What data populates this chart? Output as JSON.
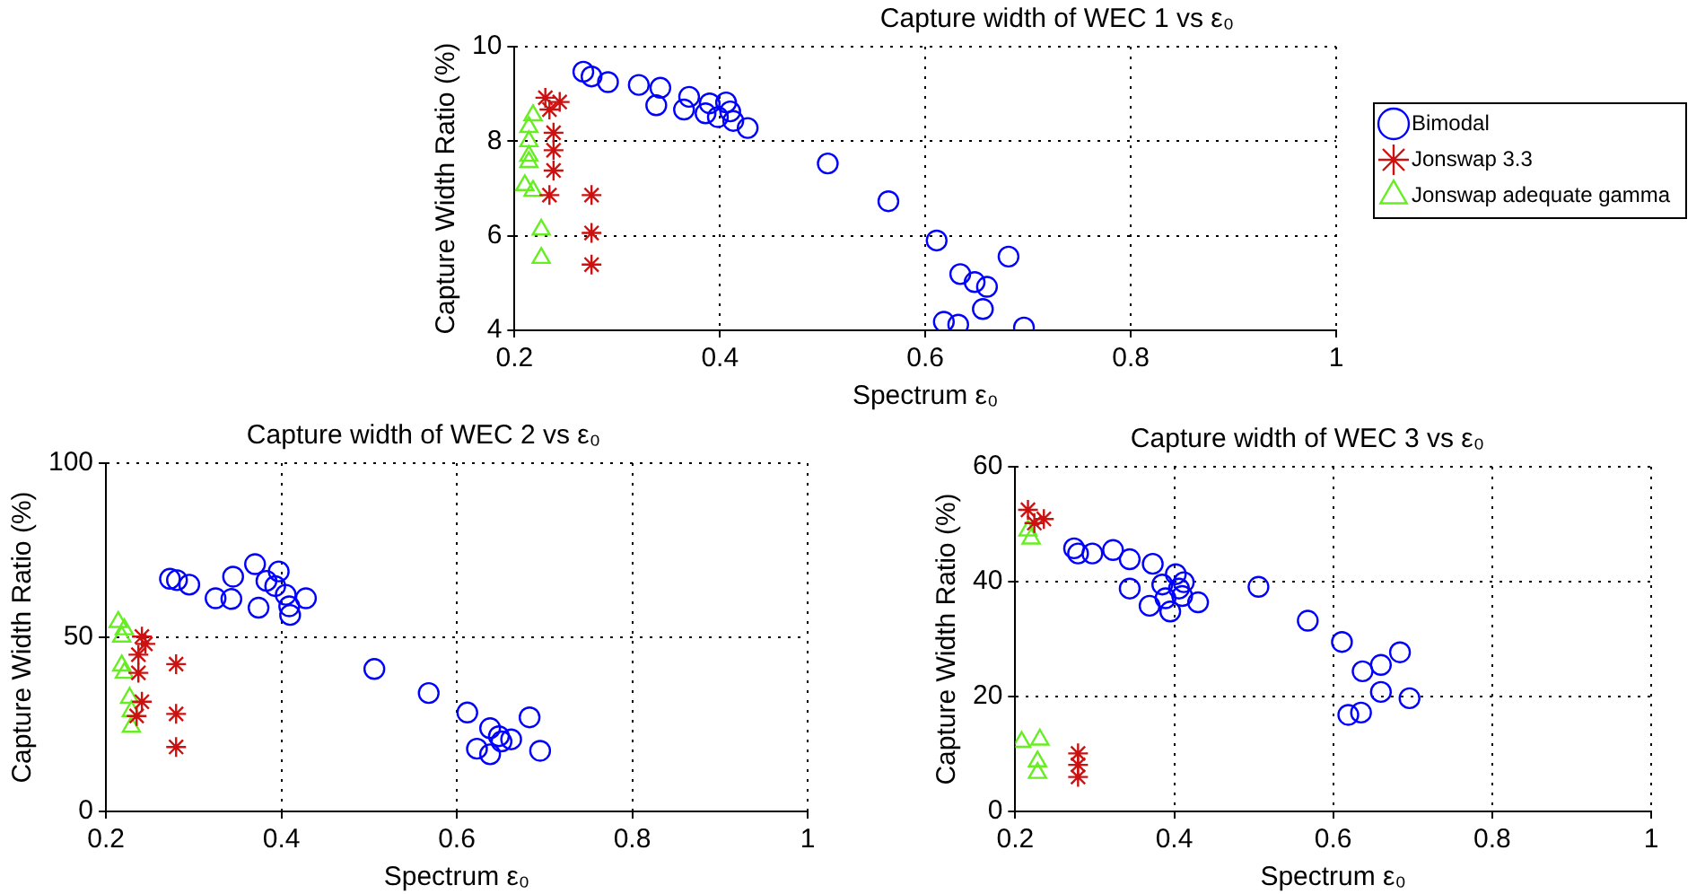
{
  "chart_data": [
    {
      "type": "scatter",
      "title": "Capture width of WEC 1 vs ε₀",
      "xlabel": "Spectrum ε₀",
      "ylabel": "Capture Width Ratio (%)",
      "xlim": [
        0.2,
        1
      ],
      "xticks": [
        0.2,
        0.4,
        0.6,
        0.8,
        1
      ],
      "ylim": [
        4,
        10
      ],
      "yticks": [
        4,
        6,
        8,
        10
      ],
      "grid": true,
      "legend": "right",
      "series": [
        {
          "name": "Bimodal",
          "color": "#0000ff",
          "marker": "circle",
          "x": [
            0.267,
            0.275,
            0.291,
            0.321,
            0.342,
            0.338,
            0.37,
            0.365,
            0.39,
            0.386,
            0.406,
            0.41,
            0.398,
            0.413,
            0.427,
            0.505,
            0.564,
            0.611,
            0.681,
            0.634,
            0.648,
            0.66,
            0.656,
            0.618,
            0.632,
            0.696
          ],
          "values": [
            9.47,
            9.37,
            9.25,
            9.19,
            9.13,
            8.76,
            8.94,
            8.67,
            8.8,
            8.59,
            8.82,
            8.63,
            8.51,
            8.43,
            8.28,
            7.53,
            6.73,
            5.9,
            5.56,
            5.19,
            5.02,
            4.92,
            4.45,
            4.18,
            4.12,
            4.06
          ]
        },
        {
          "name": "Jonswap 3.3",
          "color": "#cc1111",
          "marker": "cross",
          "x": [
            0.23,
            0.238,
            0.244,
            0.234,
            0.238,
            0.238,
            0.238,
            0.234,
            0.275,
            0.275,
            0.275
          ],
          "values": [
            8.92,
            null,
            8.83,
            8.67,
            8.18,
            7.81,
            7.38,
            6.86,
            6.86,
            6.06,
            5.39
          ]
        },
        {
          "name": "Jonswap adequate gamma",
          "color": "#66ee22",
          "marker": "triangle",
          "x": [
            0.218,
            0.214,
            0.214,
            0.214,
            0.214,
            0.21,
            0.218,
            0.226,
            0.226
          ],
          "values": [
            8.55,
            8.3,
            8.0,
            7.69,
            7.56,
            7.07,
            6.95,
            6.13,
            5.53
          ]
        }
      ]
    },
    {
      "type": "scatter",
      "title": "Capture width of WEC 2 vs ε₀",
      "xlabel": "Spectrum ε₀",
      "ylabel": "Capture Width Ratio (%)",
      "xlim": [
        0.2,
        1
      ],
      "xticks": [
        0.2,
        0.4,
        0.6,
        0.8,
        1
      ],
      "ylim": [
        0,
        100
      ],
      "yticks": [
        0,
        50,
        100
      ],
      "grid": true,
      "series": [
        {
          "color": "#0000ff",
          "marker": "circle",
          "x": [
            0.273,
            0.281,
            0.295,
            0.325,
            0.345,
            0.343,
            0.37,
            0.374,
            0.383,
            0.397,
            0.393,
            0.405,
            0.409,
            0.41,
            0.428,
            0.506,
            0.568,
            0.612,
            0.683,
            0.638,
            0.648,
            0.662,
            0.623,
            0.638,
            0.695,
            0.651
          ],
          "values": [
            66.8,
            66.4,
            65.1,
            61.2,
            67.4,
            61.0,
            71.0,
            58.5,
            66.2,
            68.9,
            64.7,
            62.2,
            58.9,
            56.4,
            61.2,
            40.9,
            34.0,
            28.4,
            27.0,
            23.9,
            21.6,
            20.7,
            18.0,
            16.4,
            17.4,
            20.1
          ]
        },
        {
          "color": "#cc1111",
          "marker": "cross",
          "x": [
            0.241,
            0.245,
            0.237,
            0.237,
            0.241,
            0.235,
            0.28,
            0.28,
            0.28
          ],
          "values": [
            50.2,
            48.1,
            45.0,
            39.8,
            31.5,
            27.4,
            42.3,
            28.0,
            18.5
          ]
        },
        {
          "color": "#66ee22",
          "marker": "triangle",
          "x": [
            0.214,
            0.221,
            0.218,
            0.218,
            0.221,
            0.227,
            0.229,
            0.229
          ],
          "values": [
            54.4,
            52.3,
            50.2,
            41.9,
            39.8,
            32.6,
            28.8,
            24.3
          ]
        }
      ]
    },
    {
      "type": "scatter",
      "title": "Capture width of WEC 3 vs ε₀",
      "xlabel": "Spectrum ε₀",
      "ylabel": "Capture Width Ratio (%)",
      "xlim": [
        0.2,
        1
      ],
      "xticks": [
        0.2,
        0.4,
        0.6,
        0.8,
        1
      ],
      "ylim": [
        0,
        60
      ],
      "yticks": [
        0,
        20,
        40,
        60
      ],
      "grid": true,
      "series": [
        {
          "color": "#0000ff",
          "marker": "circle",
          "x": [
            0.274,
            0.279,
            0.297,
            0.323,
            0.344,
            0.344,
            0.373,
            0.369,
            0.385,
            0.389,
            0.395,
            0.402,
            0.406,
            0.412,
            0.41,
            0.43,
            0.506,
            0.568,
            0.611,
            0.637,
            0.66,
            0.684,
            0.66,
            0.696,
            0.619,
            0.635
          ],
          "values": [
            45.8,
            44.9,
            44.9,
            45.5,
            43.9,
            38.8,
            43.1,
            35.8,
            39.5,
            37.1,
            34.8,
            41.3,
            38.8,
            39.9,
            37.5,
            36.4,
            39.1,
            33.2,
            29.5,
            24.4,
            25.5,
            27.7,
            20.8,
            19.7,
            16.8,
            17.2
          ]
        },
        {
          "color": "#cc1111",
          "marker": "cross",
          "x": [
            0.216,
            0.228,
            0.236,
            0.224,
            0.279,
            0.279,
            0.279
          ],
          "values": [
            52.5,
            null,
            50.9,
            50.2,
            10.1,
            8.1,
            6.0
          ]
        },
        {
          "color": "#66ee22",
          "marker": "triangle",
          "x": [
            0.216,
            0.22,
            0.208,
            0.231,
            0.228,
            0.228
          ],
          "values": [
            48.9,
            47.5,
            12.1,
            12.5,
            8.7,
            6.7
          ]
        }
      ]
    }
  ]
}
